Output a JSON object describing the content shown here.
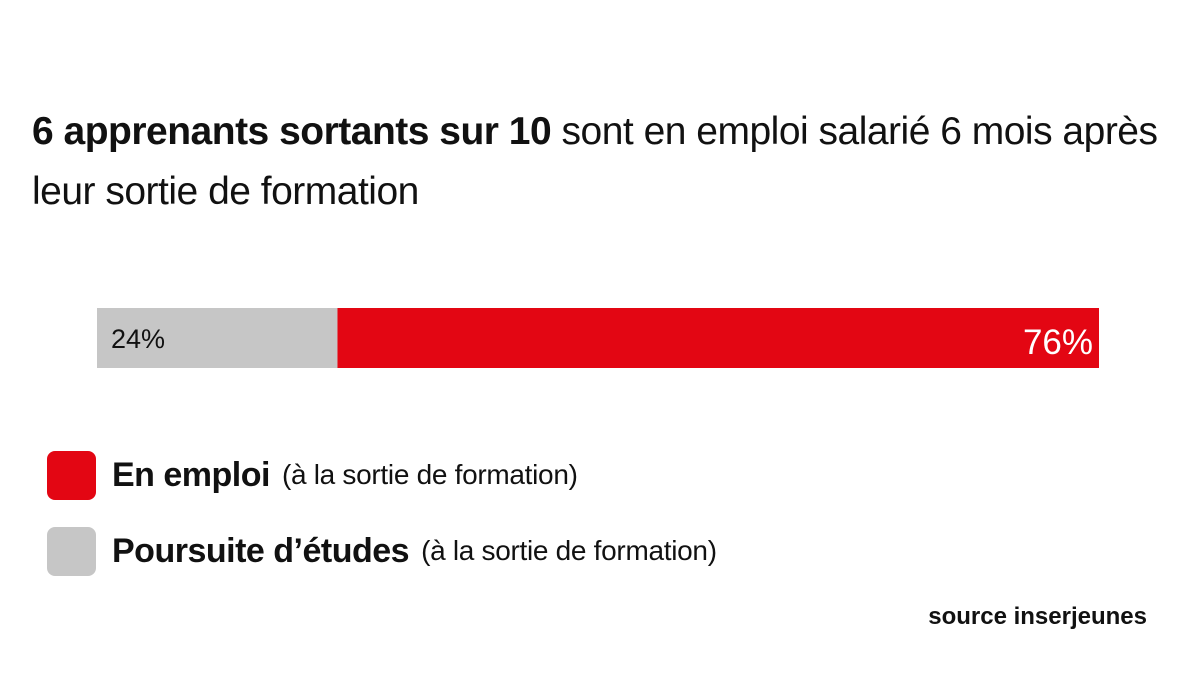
{
  "title": {
    "bold_part": "6 apprenants sortants sur 10",
    "rest": " sont en emploi salarié 6 mois après leur sortie de formation"
  },
  "chart_data": {
    "type": "bar",
    "orientation": "horizontal-stacked",
    "categories": [
      "Poursuite d’études",
      "En emploi"
    ],
    "values": [
      24,
      76
    ],
    "unit": "%",
    "data_labels": [
      "24%",
      "76%"
    ],
    "colors": [
      "#c6c6c6",
      "#e30613"
    ],
    "xlim": [
      0,
      100
    ]
  },
  "legend": {
    "items": [
      {
        "label": "En emploi",
        "note": "(à la sortie de formation)",
        "color": "#e30613"
      },
      {
        "label": "Poursuite d’études",
        "note": "(à la sortie de formation)",
        "color": "#c6c6c6"
      }
    ]
  },
  "source": "source inserjeunes"
}
